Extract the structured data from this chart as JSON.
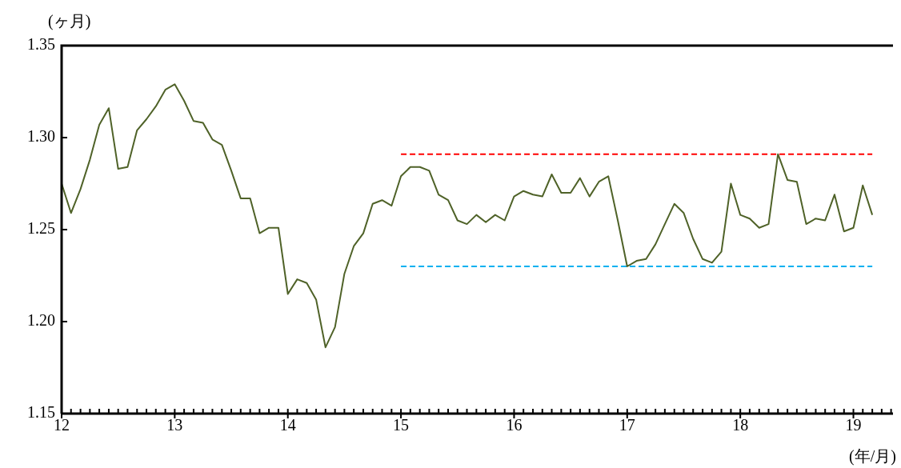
{
  "chart_data": {
    "type": "line",
    "ylabel": "(ヶ月)",
    "xlabel": "(年/月)",
    "x": [
      12,
      12.083,
      12.167,
      12.25,
      12.333,
      12.417,
      12.5,
      12.583,
      12.667,
      12.75,
      12.833,
      12.917,
      13,
      13.083,
      13.167,
      13.25,
      13.333,
      13.417,
      13.5,
      13.583,
      13.667,
      13.75,
      13.833,
      13.917,
      14,
      14.083,
      14.167,
      14.25,
      14.333,
      14.417,
      14.5,
      14.583,
      14.667,
      14.75,
      14.833,
      14.917,
      15,
      15.083,
      15.167,
      15.25,
      15.333,
      15.417,
      15.5,
      15.583,
      15.667,
      15.75,
      15.833,
      15.917,
      16,
      16.083,
      16.167,
      16.25,
      16.333,
      16.417,
      16.5,
      16.583,
      16.667,
      16.75,
      16.833,
      16.917,
      17,
      17.083,
      17.167,
      17.25,
      17.333,
      17.417,
      17.5,
      17.583,
      17.667,
      17.75,
      17.833,
      17.917,
      18,
      18.083,
      18.167,
      18.25,
      18.333,
      18.417,
      18.5,
      18.583,
      18.667,
      18.75,
      18.833,
      18.917,
      19,
      19.083,
      19.167
    ],
    "series": [
      {
        "color": "#4f6228",
        "values": [
          1.275,
          1.259,
          1.272,
          1.288,
          1.307,
          1.316,
          1.283,
          1.284,
          1.304,
          1.31,
          1.317,
          1.326,
          1.329,
          1.32,
          1.309,
          1.308,
          1.299,
          1.296,
          1.282,
          1.267,
          1.267,
          1.248,
          1.251,
          1.251,
          1.215,
          1.223,
          1.221,
          1.212,
          1.186,
          1.197,
          1.226,
          1.241,
          1.248,
          1.264,
          1.266,
          1.263,
          1.279,
          1.284,
          1.284,
          1.282,
          1.269,
          1.266,
          1.255,
          1.253,
          1.258,
          1.254,
          1.258,
          1.255,
          1.268,
          1.271,
          1.269,
          1.268,
          1.28,
          1.27,
          1.27,
          1.278,
          1.268,
          1.276,
          1.279,
          1.255,
          1.23,
          1.233,
          1.234,
          1.242,
          1.253,
          1.264,
          1.259,
          1.245,
          1.234,
          1.232,
          1.238,
          1.275,
          1.258,
          1.256,
          1.251,
          1.253,
          1.291,
          1.277,
          1.276,
          1.253,
          1.256,
          1.255,
          1.269,
          1.249,
          1.251,
          1.274,
          1.258
        ]
      },
      {
        "type": "line",
        "color": "#ff0000",
        "line_style": "dashed",
        "values": [
          null,
          null,
          null,
          null,
          null,
          null,
          null,
          null,
          null,
          null,
          null,
          null,
          null,
          null,
          null,
          null,
          null,
          null,
          null,
          null,
          null,
          null,
          null,
          null,
          null,
          null,
          null,
          null,
          null,
          null,
          null,
          null,
          null,
          null,
          null,
          null,
          1.291,
          1.291,
          1.291,
          1.291,
          1.291,
          1.291,
          1.291,
          1.291,
          1.291,
          1.291,
          1.291,
          1.291,
          1.291,
          1.291,
          1.291,
          1.291,
          1.291,
          1.291,
          1.291,
          1.291,
          1.291,
          1.291,
          1.291,
          1.291,
          1.291,
          1.291,
          1.291,
          1.291,
          1.291,
          1.291,
          1.291,
          1.291,
          1.291,
          1.291,
          1.291,
          1.291,
          1.291,
          1.291,
          1.291,
          1.291,
          1.291,
          1.291,
          1.291,
          1.291,
          1.291,
          1.291,
          1.291,
          1.291,
          1.291,
          1.291,
          1.291
        ]
      },
      {
        "type": "line",
        "color": "#00b0f0",
        "line_style": "dashed",
        "values": [
          null,
          null,
          null,
          null,
          null,
          null,
          null,
          null,
          null,
          null,
          null,
          null,
          null,
          null,
          null,
          null,
          null,
          null,
          null,
          null,
          null,
          null,
          null,
          null,
          null,
          null,
          null,
          null,
          null,
          null,
          null,
          null,
          null,
          null,
          null,
          null,
          1.23,
          1.23,
          1.23,
          1.23,
          1.23,
          1.23,
          1.23,
          1.23,
          1.23,
          1.23,
          1.23,
          1.23,
          1.23,
          1.23,
          1.23,
          1.23,
          1.23,
          1.23,
          1.23,
          1.23,
          1.23,
          1.23,
          1.23,
          1.23,
          1.23,
          1.23,
          1.23,
          1.23,
          1.23,
          1.23,
          1.23,
          1.23,
          1.23,
          1.23,
          1.23,
          1.23,
          1.23,
          1.23,
          1.23,
          1.23,
          1.23,
          1.23,
          1.23,
          1.23,
          1.23,
          1.23,
          1.23,
          1.23,
          1.23,
          1.23,
          1.23
        ]
      }
    ],
    "xlim": [
      12,
      19.35
    ],
    "xticks": [
      12,
      {
        "value": 12.083,
        "label": null
      },
      {
        "value": 12.167,
        "label": null
      },
      {
        "value": 12.25,
        "label": null
      },
      {
        "value": 12.333,
        "label": null
      },
      {
        "value": 12.417,
        "label": null
      },
      {
        "value": 12.5,
        "label": null
      },
      {
        "value": 12.583,
        "label": null
      },
      {
        "value": 12.667,
        "label": null
      },
      {
        "value": 12.75,
        "label": null
      },
      {
        "value": 12.833,
        "label": null
      },
      {
        "value": 12.917,
        "label": null
      },
      13,
      {
        "value": 13.083,
        "label": null
      },
      {
        "value": 13.167,
        "label": null
      },
      {
        "value": 13.25,
        "label": null
      },
      {
        "value": 13.333,
        "label": null
      },
      {
        "value": 13.417,
        "label": null
      },
      {
        "value": 13.5,
        "label": null
      },
      {
        "value": 13.583,
        "label": null
      },
      {
        "value": 13.667,
        "label": null
      },
      {
        "value": 13.75,
        "label": null
      },
      {
        "value": 13.833,
        "label": null
      },
      {
        "value": 13.917,
        "label": null
      },
      14,
      {
        "value": 14.083,
        "label": null
      },
      {
        "value": 14.167,
        "label": null
      },
      {
        "value": 14.25,
        "label": null
      },
      {
        "value": 14.333,
        "label": null
      },
      {
        "value": 14.417,
        "label": null
      },
      {
        "value": 14.5,
        "label": null
      },
      {
        "value": 14.583,
        "label": null
      },
      {
        "value": 14.667,
        "label": null
      },
      {
        "value": 14.75,
        "label": null
      },
      {
        "value": 14.833,
        "label": null
      },
      {
        "value": 14.917,
        "label": null
      },
      15,
      {
        "value": 15.083,
        "label": null
      },
      {
        "value": 15.167,
        "label": null
      },
      {
        "value": 15.25,
        "label": null
      },
      {
        "value": 15.333,
        "label": null
      },
      {
        "value": 15.417,
        "label": null
      },
      {
        "value": 15.5,
        "label": null
      },
      {
        "value": 15.583,
        "label": null
      },
      {
        "value": 15.667,
        "label": null
      },
      {
        "value": 15.75,
        "label": null
      },
      {
        "value": 15.833,
        "label": null
      },
      {
        "value": 15.917,
        "label": null
      },
      16,
      {
        "value": 16.083,
        "label": null
      },
      {
        "value": 16.167,
        "label": null
      },
      {
        "value": 16.25,
        "label": null
      },
      {
        "value": 16.333,
        "label": null
      },
      {
        "value": 16.417,
        "label": null
      },
      {
        "value": 16.5,
        "label": null
      },
      {
        "value": 16.583,
        "label": null
      },
      {
        "value": 16.667,
        "label": null
      },
      {
        "value": 16.75,
        "label": null
      },
      {
        "value": 16.833,
        "label": null
      },
      {
        "value": 16.917,
        "label": null
      },
      17,
      {
        "value": 17.083,
        "label": null
      },
      {
        "value": 17.167,
        "label": null
      },
      {
        "value": 17.25,
        "label": null
      },
      {
        "value": 17.333,
        "label": null
      },
      {
        "value": 17.417,
        "label": null
      },
      {
        "value": 17.5,
        "label": null
      },
      {
        "value": 17.583,
        "label": null
      },
      {
        "value": 17.667,
        "label": null
      },
      {
        "value": 17.75,
        "label": null
      },
      {
        "value": 17.833,
        "label": null
      },
      {
        "value": 17.917,
        "label": null
      },
      18,
      {
        "value": 18.083,
        "label": null
      },
      {
        "value": 18.167,
        "label": null
      },
      {
        "value": 18.25,
        "label": null
      },
      {
        "value": 18.333,
        "label": null
      },
      {
        "value": 18.417,
        "label": null
      },
      {
        "value": 18.5,
        "label": null
      },
      {
        "value": 18.583,
        "label": null
      },
      {
        "value": 18.667,
        "label": null
      },
      {
        "value": 18.75,
        "label": null
      },
      {
        "value": 18.833,
        "label": null
      },
      {
        "value": 18.917,
        "label": null
      },
      19,
      {
        "value": 19.083,
        "label": null
      },
      {
        "value": 19.167,
        "label": null
      },
      {
        "value": 19.25,
        "label": null
      },
      {
        "value": 19.333,
        "label": null
      }
    ],
    "ylim": [
      1.15,
      1.35
    ],
    "yticks": [
      1.15,
      {
        "value": 1.2,
        "label": "1.20"
      },
      1.25,
      {
        "value": 1.3,
        "label": "1.30"
      },
      1.35
    ],
    "grid": false,
    "legend": false,
    "marker": "none",
    "line_style": "solid"
  }
}
